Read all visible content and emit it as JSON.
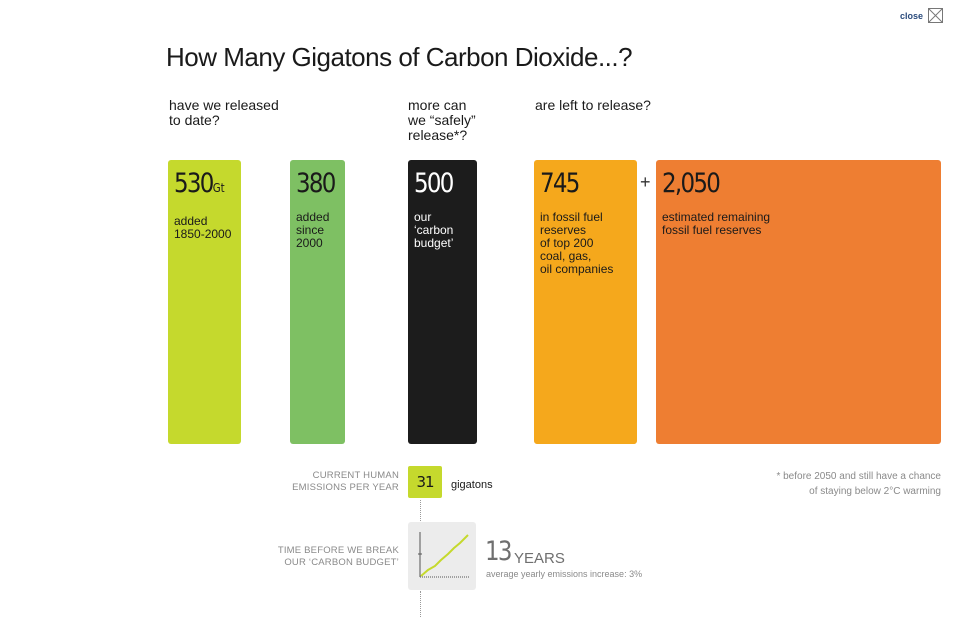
{
  "close": {
    "label": "close"
  },
  "chart_data": {
    "type": "bar",
    "title": "How Many Gigatons of Carbon Dioxide...?",
    "column_headers": [
      "have we released\nto date?",
      "more can\nwe “safely”\nrelease*?",
      "are left to release?"
    ],
    "unit": "Gt",
    "blocks": [
      {
        "value": 530,
        "label": "530",
        "unit": "Gt",
        "desc": "added\n1850-2000",
        "color": "#c5d92d",
        "text_color": "#1a1a1a"
      },
      {
        "value": 380,
        "label": "380",
        "unit": "",
        "desc": "added\nsince\n2000",
        "color": "#7ec063",
        "text_color": "#1a1a1a"
      },
      {
        "value": 500,
        "label": "500",
        "unit": "",
        "desc": "our\n‘carbon\nbudget’",
        "color": "#1c1c1c",
        "text_color": "#ffffff"
      },
      {
        "value": 745,
        "label": "745",
        "unit": "",
        "desc": "in fossil fuel\nreserves\nof top 200\ncoal, gas,\noil companies",
        "color": "#f5a81c",
        "text_color": "#1a1a1a"
      },
      {
        "value": 2050,
        "label": "2,050",
        "unit": "",
        "desc": "estimated remaining\nfossil fuel reserves",
        "color": "#ee7e32",
        "text_color": "#1a1a1a"
      }
    ],
    "plus_sign": "+",
    "emissions": {
      "label": "CURRENT HUMAN\nEMISSIONS PER YEAR",
      "value": "31",
      "unit": "gigatons",
      "color": "#c5d92d"
    },
    "budget_time": {
      "label": "TIME BEFORE WE BREAK\nOUR ‘CARBON BUDGET’",
      "value": "13",
      "unit": "YEARS",
      "note": "average yearly emissions increase: 3%"
    },
    "footnote": "* before 2050 and still have a chance\nof staying below 2°C warming"
  }
}
